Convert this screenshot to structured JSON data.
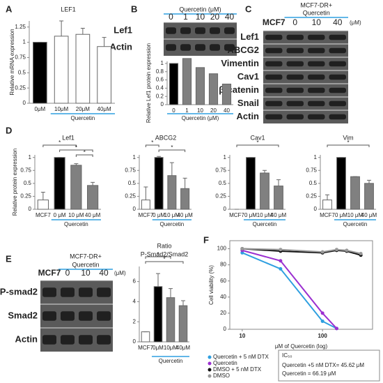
{
  "panel_labels": [
    "A",
    "B",
    "C",
    "D",
    "E",
    "F"
  ],
  "blots": [
    {
      "header": [
        "Quercetin (μM)"
      ],
      "lanes": [
        "0",
        "1",
        "10",
        "20",
        "40"
      ],
      "rows": [
        "Lef1",
        "Actin"
      ]
    },
    {
      "header": [
        "MCF7-DR+",
        "Quercetin"
      ],
      "lanes": [
        "MCF7",
        "0",
        "10",
        "40"
      ],
      "unit": "(μM)",
      "rows": [
        "Lef1",
        "ABCG2",
        "Vimentin",
        "Cav1",
        "β-catenin",
        "Snail",
        "Actin"
      ]
    },
    {
      "header": [
        "MCF7-DR+",
        "Quercetin"
      ],
      "lanes": [
        "MCF7",
        "0",
        "10",
        "40"
      ],
      "unit": "(μM)",
      "rows": [
        "P-smad2",
        "Smad2",
        "Actin"
      ]
    }
  ],
  "chart_data": [
    {
      "type": "bar",
      "title": "LEF1",
      "y_label": "Relative mRNA expression",
      "x_label": "Quercetin",
      "categories": [
        "0μM",
        "10μM",
        "20μM",
        "40μM"
      ],
      "values": [
        1,
        1.1,
        1.13,
        0.93
      ],
      "errors": [
        0,
        0.25,
        0.1,
        0.15
      ],
      "colors": [
        "#000000",
        "#ffffff",
        "#ffffff",
        "#ffffff"
      ],
      "ylim": [
        0,
        1.35
      ],
      "yticks": [
        0,
        0.25,
        0.5,
        0.75,
        1,
        1.25
      ]
    },
    {
      "type": "bar",
      "y_label": "Relative Lef1 protein expression",
      "x_label": "Quercetin (μM)",
      "categories": [
        "0",
        "1",
        "10",
        "20",
        "40"
      ],
      "values": [
        1,
        1.12,
        0.9,
        0.75,
        0.5
      ],
      "colors": [
        "#000000",
        "#808080",
        "#808080",
        "#808080",
        "#808080"
      ],
      "ylim": [
        0,
        1.05
      ],
      "yticks": [
        0,
        0.2,
        0.4,
        0.6,
        0.8,
        1
      ]
    },
    {
      "type": "bar",
      "title": "Lef1",
      "y_label": "Relative protein expression",
      "x_label": "Quercetin",
      "categories": [
        "MCF7",
        "0 μM",
        "10 μM",
        "40 μM"
      ],
      "values": [
        0.18,
        1,
        0.85,
        0.46
      ],
      "errors": [
        0.15,
        0,
        0.03,
        0.06
      ],
      "colors": [
        "#ffffff",
        "#000000",
        "#808080",
        "#808080"
      ],
      "ylim": [
        0,
        1.05
      ],
      "yticks": [
        0,
        0.25,
        0.5,
        0.75,
        1
      ],
      "annotations": [
        "*",
        "*",
        "*"
      ]
    },
    {
      "type": "bar",
      "title": "ABCG2",
      "x_label": "Quercetin",
      "categories": [
        "MCF7",
        "0 μM",
        "10 μM",
        "40 μM"
      ],
      "values": [
        0.18,
        1,
        0.65,
        0.4
      ],
      "errors": [
        0.25,
        0.02,
        0.25,
        0.2
      ],
      "colors": [
        "#ffffff",
        "#000000",
        "#808080",
        "#808080"
      ],
      "ylim": [
        0,
        1.05
      ],
      "yticks": [
        0,
        0.25,
        0.5,
        0.75,
        1
      ],
      "annotations": [
        "*",
        "*"
      ]
    },
    {
      "type": "bar",
      "title": "Cav1",
      "x_label": "Quercetin",
      "categories": [
        "MCF7",
        "0 μM",
        "10 μM",
        "40 μM"
      ],
      "values": [
        0,
        1,
        0.7,
        0.45
      ],
      "errors": [
        0,
        0,
        0.05,
        0.12
      ],
      "colors": [
        "#ffffff",
        "#000000",
        "#808080",
        "#808080"
      ],
      "ylim": [
        0,
        1.05
      ],
      "yticks": [
        0,
        0.25,
        0.5,
        0.75,
        1
      ],
      "annotations": [
        "*"
      ]
    },
    {
      "type": "bar",
      "title": "Vim",
      "x_label": "Quercetin",
      "categories": [
        "MCF7",
        "0 μM",
        "10 μM",
        "40 μM"
      ],
      "values": [
        0.18,
        1,
        0.63,
        0.5
      ],
      "errors": [
        0.1,
        0,
        0,
        0.06
      ],
      "colors": [
        "#ffffff",
        "#000000",
        "#808080",
        "#808080"
      ],
      "ylim": [
        0,
        1.05
      ],
      "yticks": [
        0,
        0.25,
        0.5,
        0.75,
        1
      ],
      "annotations": [
        "*"
      ]
    },
    {
      "type": "bar",
      "title": "Ratio",
      "subtitle": "P-Smad2/Smad2",
      "x_label": "Quercetin",
      "categories": [
        "MCF7",
        "0μM",
        "10μM",
        "40μM"
      ],
      "values": [
        1,
        5.5,
        4.4,
        3.6
      ],
      "errors": [
        0,
        1.3,
        0.9,
        0.5
      ],
      "colors": [
        "#ffffff",
        "#000000",
        "#808080",
        "#808080"
      ],
      "ylim": [
        0,
        7.5
      ],
      "yticks": [
        0,
        2,
        4,
        6
      ],
      "annotations": [
        "*",
        "*"
      ]
    },
    {
      "type": "line",
      "y_label": "Cell viability (%)",
      "x_label": "μM of Quercetin (log)",
      "log_x": true,
      "x": [
        10,
        30,
        100,
        150,
        200,
        300
      ],
      "xlim": [
        7,
        420
      ],
      "xticks": [
        10,
        100
      ],
      "ylim": [
        0,
        110
      ],
      "yticks": [
        0,
        20,
        40,
        60,
        80,
        100
      ],
      "series": [
        {
          "name": "Quercetin + 5 nM DTX",
          "color": "#2e9fe0",
          "values": [
            95,
            75,
            10,
            1,
            null,
            null
          ]
        },
        {
          "name": "Quercetin",
          "color": "#9b30d0",
          "values": [
            98,
            85,
            20,
            1,
            null,
            null
          ]
        },
        {
          "name": "DMSO + 5 nM DTX",
          "color": "#111111",
          "values": [
            100,
            97,
            95,
            98,
            97,
            92
          ]
        },
        {
          "name": "DMSO",
          "color": "#999999",
          "values": [
            100,
            99,
            96,
            99,
            98,
            94
          ]
        }
      ],
      "ic50_title": "IC₅₀",
      "ic50": [
        "Quercetin +5 nM DTX= 45.62 μM",
        "Quercetin = 66.19 μM"
      ]
    }
  ]
}
